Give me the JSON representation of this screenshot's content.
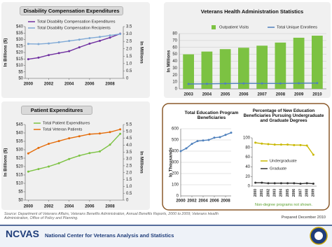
{
  "chart_data": [
    {
      "type": "line",
      "title": "Disability Compensation Expenditures",
      "y_label": "In Billions ($)",
      "y2_label": "In Millions",
      "x": [
        2000,
        2001,
        2002,
        2003,
        2004,
        2005,
        2006,
        2007,
        2008,
        2009
      ],
      "xlim": [
        1999.7,
        2009.3
      ],
      "xticks": [
        2000,
        2002,
        2004,
        2006,
        2008
      ],
      "ylim": [
        0,
        40
      ],
      "yticks": [
        {
          "value": 0,
          "label": "$0"
        },
        {
          "value": 5,
          "label": "$5"
        },
        {
          "value": 10,
          "label": "$10"
        },
        {
          "value": 15,
          "label": "$15"
        },
        {
          "value": 20,
          "label": "$20"
        },
        {
          "value": 25,
          "label": "$25"
        },
        {
          "value": 30,
          "label": "$30"
        },
        {
          "value": 35,
          "label": "$35"
        },
        {
          "value": 40,
          "label": "$40"
        }
      ],
      "y2lim": [
        0,
        3.5
      ],
      "y2ticks": [
        0,
        0.5,
        {
          "value": 1,
          "label": "1.0"
        },
        1.5,
        {
          "value": 2,
          "label": "2.0"
        },
        2.5,
        {
          "value": 3,
          "label": "3.0"
        },
        3.5
      ],
      "series": [
        {
          "name": "Total Disability Compensation Expenditures",
          "color": "#7030a0",
          "values": [
            14.8,
            16.0,
            18.0,
            19.5,
            21.0,
            24.0,
            26.8,
            29.0,
            31.5,
            34.5
          ]
        },
        {
          "name": "Total Disability Compensation Recipients",
          "color": "#7fa9d6",
          "axis": "y2",
          "values": [
            2.33,
            2.32,
            2.36,
            2.44,
            2.53,
            2.62,
            2.72,
            2.8,
            2.9,
            3.0
          ]
        }
      ]
    },
    {
      "type": "line",
      "title": "Patient Expenditures",
      "y_label": "In Billions ($)",
      "y2_label": "In Millions",
      "x": [
        2000,
        2001,
        2002,
        2003,
        2004,
        2005,
        2006,
        2007,
        2008,
        2009
      ],
      "xlim": [
        1999.7,
        2009.3
      ],
      "xticks": [
        2000,
        2002,
        2004,
        2006,
        2008
      ],
      "ylim": [
        0,
        45
      ],
      "yticks": [
        {
          "value": 0,
          "label": "$0"
        },
        {
          "value": 5,
          "label": "$5"
        },
        {
          "value": 10,
          "label": "$10"
        },
        {
          "value": 15,
          "label": "$15"
        },
        {
          "value": 20,
          "label": "$20"
        },
        {
          "value": 25,
          "label": "$25"
        },
        {
          "value": 30,
          "label": "$30"
        },
        {
          "value": 35,
          "label": "$35"
        },
        {
          "value": 40,
          "label": "$40"
        },
        {
          "value": 45,
          "label": "$45"
        }
      ],
      "y2lim": [
        0,
        5.5
      ],
      "y2ticks": [
        0,
        0.5,
        {
          "value": 1,
          "label": "1.0"
        },
        1.5,
        {
          "value": 2,
          "label": "2.0"
        },
        2.5,
        {
          "value": 3,
          "label": "3.0"
        },
        3.5,
        {
          "value": 4,
          "label": "4.0"
        },
        4.5,
        {
          "value": 5,
          "label": "5.0"
        },
        5.5
      ],
      "series": [
        {
          "name": "Total Patient Expenditures",
          "color": "#7cc242",
          "values": [
            17.0,
            18.5,
            20.0,
            22.0,
            24.5,
            26.5,
            28.0,
            29.0,
            33.0,
            39.5
          ]
        },
        {
          "name": "Total Veteran Patients",
          "color": "#e46c0a",
          "axis": "y2",
          "values": [
            3.4,
            3.8,
            4.1,
            4.3,
            4.5,
            4.65,
            4.8,
            4.85,
            4.95,
            5.15
          ]
        }
      ]
    },
    {
      "type": "bar",
      "title": "Veterans Health Administration Statistics",
      "y_label": "In Millions",
      "grid": true,
      "categories": [
        "2003",
        "2004",
        "2005",
        "2006",
        "2007",
        "2008",
        "2009",
        "2010"
      ],
      "ylim": [
        0,
        80
      ],
      "yticks": [
        0,
        10,
        20,
        30,
        40,
        50,
        60,
        70,
        80
      ],
      "series": [
        {
          "name": "Outpatient Visits",
          "color": "#7cc242",
          "values": [
            50,
            54,
            57.5,
            59.5,
            62.5,
            67,
            74,
            77
          ]
        },
        {
          "name": "Total Unique Enrollees",
          "color": "#4f81bd",
          "type": "line",
          "values": [
            7.1,
            7.3,
            7.7,
            7.9,
            7.8,
            7.8,
            8.1,
            8.3
          ]
        }
      ]
    },
    {
      "type": "line",
      "title": "Total Education Program Beneficiaries",
      "y_label": "In Thousands",
      "grid": true,
      "x": [
        2000,
        2001,
        2002,
        2003,
        2004,
        2005,
        2006,
        2007,
        2008,
        2009
      ],
      "xlim": [
        2000,
        2009
      ],
      "xticks": [
        2000,
        2002,
        2004,
        2006,
        2008
      ],
      "ylim": [
        0,
        600
      ],
      "yticks": [
        0,
        100,
        200,
        300,
        400,
        500,
        600
      ],
      "series": [
        {
          "name": null,
          "color": "#4f81bd",
          "values": [
            400,
            425,
            465,
            490,
            495,
            500,
            520,
            525,
            545,
            565
          ]
        }
      ]
    },
    {
      "type": "line",
      "title": "Percentage of New Education Beneficiaries Pursuing Undergraduate and Graduate Degrees",
      "note": "Non-degree programs not shown.",
      "categories": [
        "2000",
        "2001",
        "2002",
        "2003",
        "2004",
        "2005",
        "2006",
        "2007",
        "2008",
        "2009"
      ],
      "ylim": [
        0,
        100
      ],
      "yticks": [
        0,
        20,
        40,
        60,
        80,
        100
      ],
      "series": [
        {
          "name": "Undergraduate",
          "color": "#c9b800",
          "values": [
            90,
            88,
            87,
            86,
            86,
            86,
            85,
            85,
            84,
            65
          ]
        },
        {
          "name": "Graduate",
          "color": "#333333",
          "values": [
            7,
            7,
            6,
            6,
            6,
            6,
            6,
            5,
            6,
            5
          ]
        }
      ]
    }
  ],
  "footer": {
    "source": "Source: Department of Veterans Affairs, Veterans Benefits Administration, Annual Benefits Reports, 2000 to 2009; Veterans Health Administration, Office of Policy and Planning.",
    "prepared": "Prepared December 2010",
    "org_abbr": "NCVAS",
    "org_name": "National Center for Veterans Analysis and Statistics"
  }
}
